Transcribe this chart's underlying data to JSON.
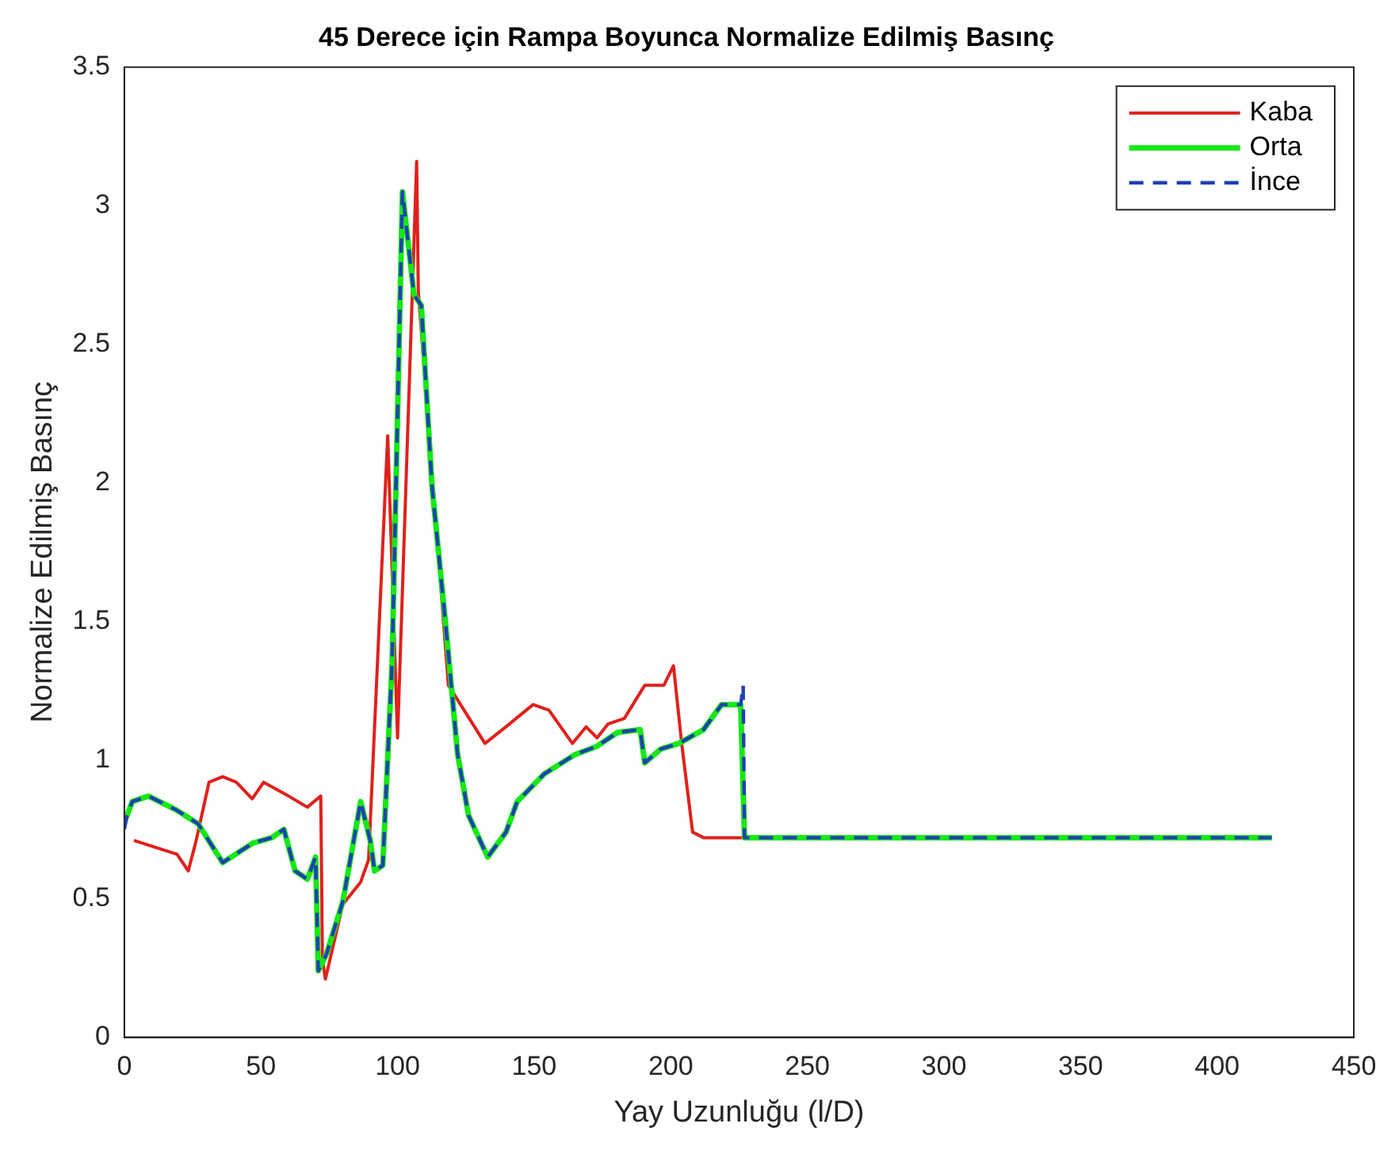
{
  "chart_data": {
    "type": "line",
    "title": "45 Derece için Rampa Boyunca Normalize Edilmiş Basınç",
    "xlabel": "Yay Uzunluğu (l/D)",
    "ylabel": "Normalize Edilmiş Basınç",
    "xlim": [
      0,
      450
    ],
    "xticks": [
      0,
      50,
      100,
      150,
      200,
      250,
      300,
      350,
      400,
      450
    ],
    "ylim": [
      0,
      3.5
    ],
    "yticks": [
      0,
      0.5,
      1,
      1.5,
      2,
      2.5,
      3,
      3.5
    ],
    "grid": false,
    "legend": "top right",
    "marker": "none",
    "series": [
      {
        "name": "Kaba",
        "color": "#e0201c",
        "line_style": "solid",
        "x": [
          3.5,
          19.3,
          23.4,
          26.3,
          31,
          36,
          41,
          46.8,
          51,
          58.4,
          67,
          71.9,
          72.5,
          73.6,
          80,
          86.5,
          89.4,
          96.4,
          100,
          107,
          107.6,
          118.6,
          132,
          139.7,
          149.6,
          155.4,
          164,
          169,
          173,
          177,
          183,
          190.5,
          197.5,
          201,
          204,
          208,
          212,
          226
        ],
        "values": [
          0.71,
          0.66,
          0.6,
          0.71,
          0.92,
          0.94,
          0.92,
          0.86,
          0.92,
          0.88,
          0.83,
          0.87,
          0.28,
          0.21,
          0.48,
          0.56,
          0.64,
          2.17,
          1.08,
          3.16,
          2.69,
          1.27,
          1.06,
          1.12,
          1.2,
          1.18,
          1.06,
          1.12,
          1.08,
          1.13,
          1.15,
          1.27,
          1.27,
          1.34,
          1.06,
          0.74,
          0.72,
          0.72
        ]
      },
      {
        "name": "Orta",
        "color": "#16e816",
        "line_style": "solid",
        "x": [
          0,
          1,
          2.9,
          8.8,
          19,
          27,
          36,
          47,
          54,
          58.4,
          62.5,
          67,
          70,
          71,
          74,
          80,
          86.5,
          90,
          91.6,
          94.6,
          98,
          101.8,
          106,
          108.7,
          112.6,
          117.5,
          122,
          126,
          133,
          139.7,
          143.8,
          153.7,
          165,
          173,
          180.6,
          188.8,
          190.5,
          196.4,
          203,
          212,
          218.6,
          225.6,
          227,
          420
        ],
        "values": [
          0.78,
          0.8,
          0.85,
          0.87,
          0.82,
          0.77,
          0.63,
          0.7,
          0.72,
          0.75,
          0.6,
          0.57,
          0.65,
          0.24,
          0.3,
          0.49,
          0.85,
          0.71,
          0.6,
          0.62,
          1.35,
          3.05,
          2.68,
          2.64,
          1.99,
          1.5,
          1.02,
          0.8,
          0.65,
          0.74,
          0.85,
          0.95,
          1.02,
          1.05,
          1.1,
          1.11,
          0.99,
          1.04,
          1.06,
          1.11,
          1.2,
          1.2,
          0.72,
          0.72
        ]
      },
      {
        "name": "İnce",
        "color": "#1f3fb5",
        "line_style": "dashed",
        "x": [
          0,
          1,
          2.9,
          8.8,
          19,
          27,
          36,
          47,
          54,
          58.4,
          62.5,
          67,
          70,
          71,
          74,
          80,
          86.5,
          90,
          91.6,
          94.6,
          98,
          101.8,
          106,
          108.7,
          112.6,
          117.5,
          122,
          126,
          133,
          139.7,
          143.8,
          153.7,
          165,
          173,
          180.6,
          188.8,
          190.5,
          196.4,
          203,
          212,
          218.6,
          225.6,
          226.5,
          227,
          420
        ],
        "values": [
          0.75,
          0.8,
          0.85,
          0.87,
          0.82,
          0.77,
          0.63,
          0.7,
          0.72,
          0.75,
          0.6,
          0.57,
          0.65,
          0.24,
          0.3,
          0.49,
          0.85,
          0.71,
          0.6,
          0.62,
          1.35,
          3.05,
          2.68,
          2.64,
          1.99,
          1.5,
          1.02,
          0.8,
          0.65,
          0.74,
          0.85,
          0.95,
          1.02,
          1.05,
          1.1,
          1.11,
          0.99,
          1.04,
          1.06,
          1.11,
          1.2,
          1.2,
          1.27,
          0.72,
          0.72
        ]
      }
    ]
  }
}
